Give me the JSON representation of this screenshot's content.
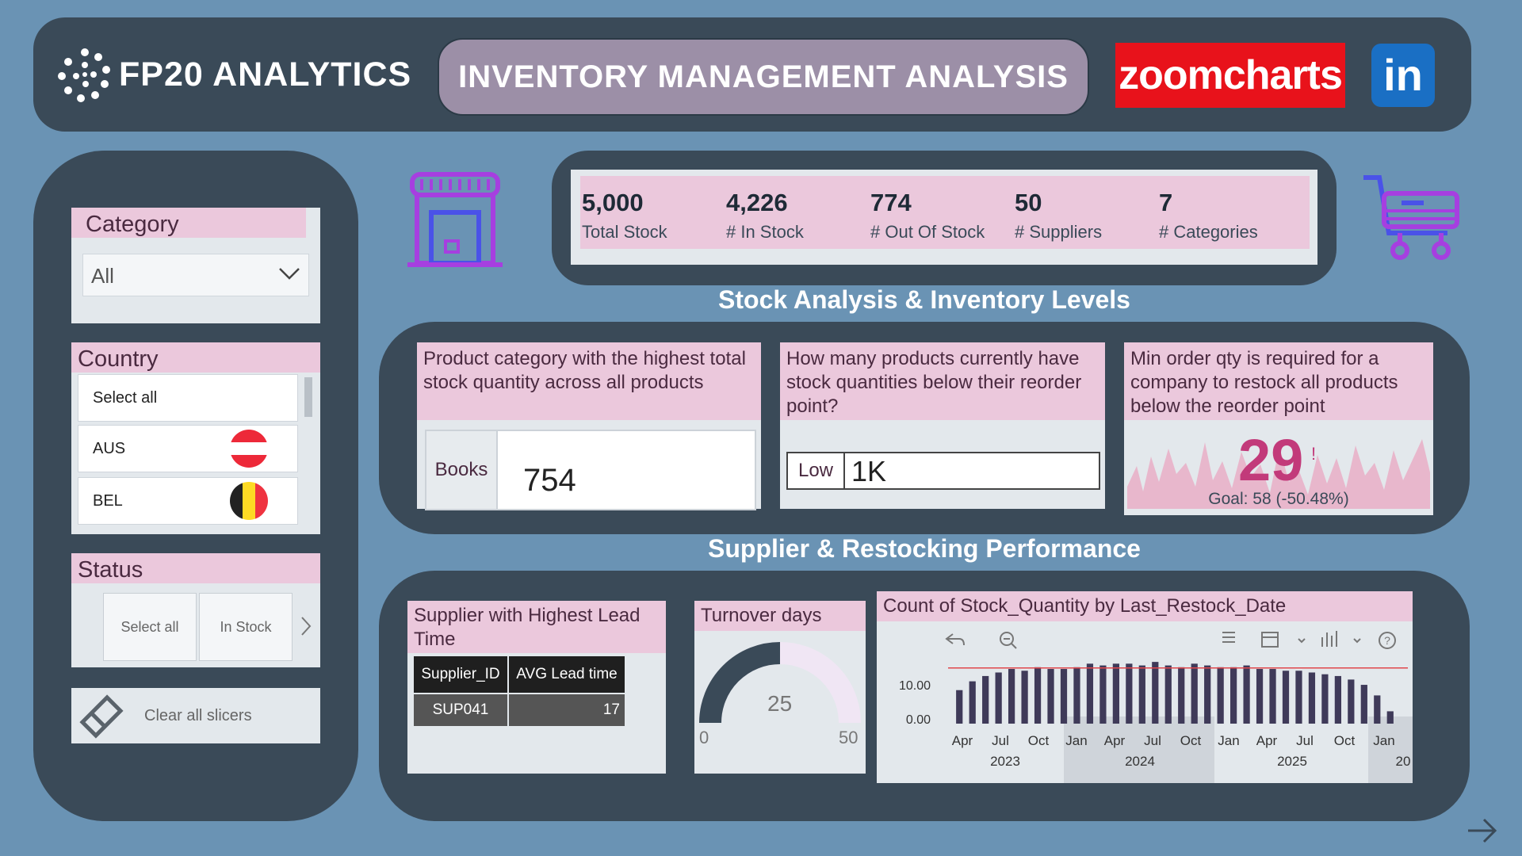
{
  "header": {
    "brand": "FP20 ANALYTICS",
    "title": "INVENTORY MANAGEMENT ANALYSIS",
    "zoomcharts_logo": "zoomcharts",
    "linkedin_logo": "in"
  },
  "slicers": {
    "category": {
      "title": "Category",
      "selected": "All"
    },
    "country": {
      "title": "Country",
      "items": [
        {
          "label": "Select all"
        },
        {
          "label": "AUS"
        },
        {
          "label": "BEL"
        }
      ]
    },
    "status": {
      "title": "Status",
      "buttons": [
        "Select all",
        "In Stock"
      ]
    },
    "clear_label": "Clear all slicers"
  },
  "kpis": [
    {
      "value": "5,000",
      "label": "Total Stock"
    },
    {
      "value": "4,226",
      "label": "# In Stock"
    },
    {
      "value": "774",
      "label": "# Out Of Stock"
    },
    {
      "value": "50",
      "label": "# Suppliers"
    },
    {
      "value": "7",
      "label": "# Categories"
    }
  ],
  "sections": {
    "stock": "Stock Analysis & Inventory Levels",
    "supplier": "Supplier & Restocking Performance"
  },
  "cards": {
    "top_category": {
      "question": "Product category with the highest total stock quantity across all products",
      "category": "Books",
      "value": "754"
    },
    "below_reorder": {
      "question": "How many products currently have stock quantities below their reorder point?",
      "tag": "Low",
      "value": "1K"
    },
    "min_order": {
      "question": "Min order qty is required for a company to restock all products below the reorder point",
      "value": "29",
      "mark": "!",
      "goal": "Goal: 58 (-50.48%)"
    },
    "lead_time": {
      "title": "Supplier with Highest Lead Time",
      "columns": [
        "Supplier_ID",
        "AVG Lead time"
      ],
      "row": [
        "SUP041",
        "17"
      ]
    },
    "turnover": {
      "title": "Turnover days",
      "value": "25",
      "min": "0",
      "max": "50",
      "fraction": 0.5
    }
  },
  "chart_data": {
    "type": "bar",
    "title": "Count of Stock_Quantity by Last_Restock_Date",
    "ytick_labels": [
      "10.00",
      "0.00"
    ],
    "month_labels": [
      "Apr",
      "Jul",
      "Oct",
      "Jan",
      "Apr",
      "Jul",
      "Oct",
      "Jan",
      "Apr",
      "Jul",
      "Oct",
      "Jan"
    ],
    "year_labels": [
      "2023",
      "2024",
      "2025",
      "20"
    ],
    "values": [
      9.5,
      12,
      13.5,
      14.5,
      15.5,
      15,
      16,
      15.5,
      15.5,
      16,
      17,
      16.5,
      17,
      17,
      16.5,
      17.5,
      16.5,
      16,
      17,
      16.5,
      16,
      16,
      16.5,
      15.5,
      15.5,
      15,
      15,
      14.5,
      14,
      13.5,
      12.5,
      11,
      8,
      3.5
    ],
    "reference_line": 15.8,
    "ylim": [
      0,
      20
    ]
  },
  "colors": {
    "panel": "#3a4a58",
    "card_title": "#ebc8dc",
    "bar": "#3f3a59",
    "accent": "#c23a7a"
  }
}
